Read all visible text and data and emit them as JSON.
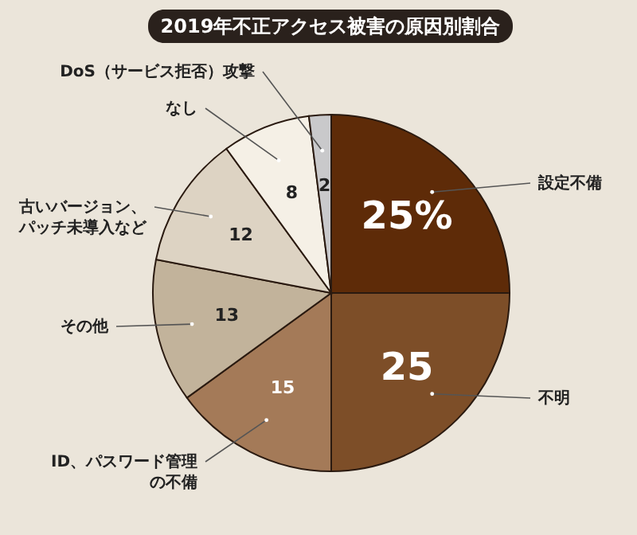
{
  "chart_data": {
    "type": "pie",
    "title": "2019年不正アクセス被害の原因別割合",
    "categories": [
      "設定不備",
      "不明",
      "ID、パスワード管理の不備",
      "その他",
      "古いバージョン、パッチ未導入など",
      "なし",
      "DoS（サービス拒否）攻撃"
    ],
    "values": [
      25,
      25,
      15,
      13,
      12,
      8,
      2
    ],
    "colors": [
      "#5e2b08",
      "#7d4e28",
      "#a47a58",
      "#c2b39b",
      "#ddd3c3",
      "#f5f0e6",
      "#c9c9cb"
    ],
    "value_labels": [
      "25%",
      "25",
      "15",
      "13",
      "12",
      "8",
      "2"
    ]
  }
}
